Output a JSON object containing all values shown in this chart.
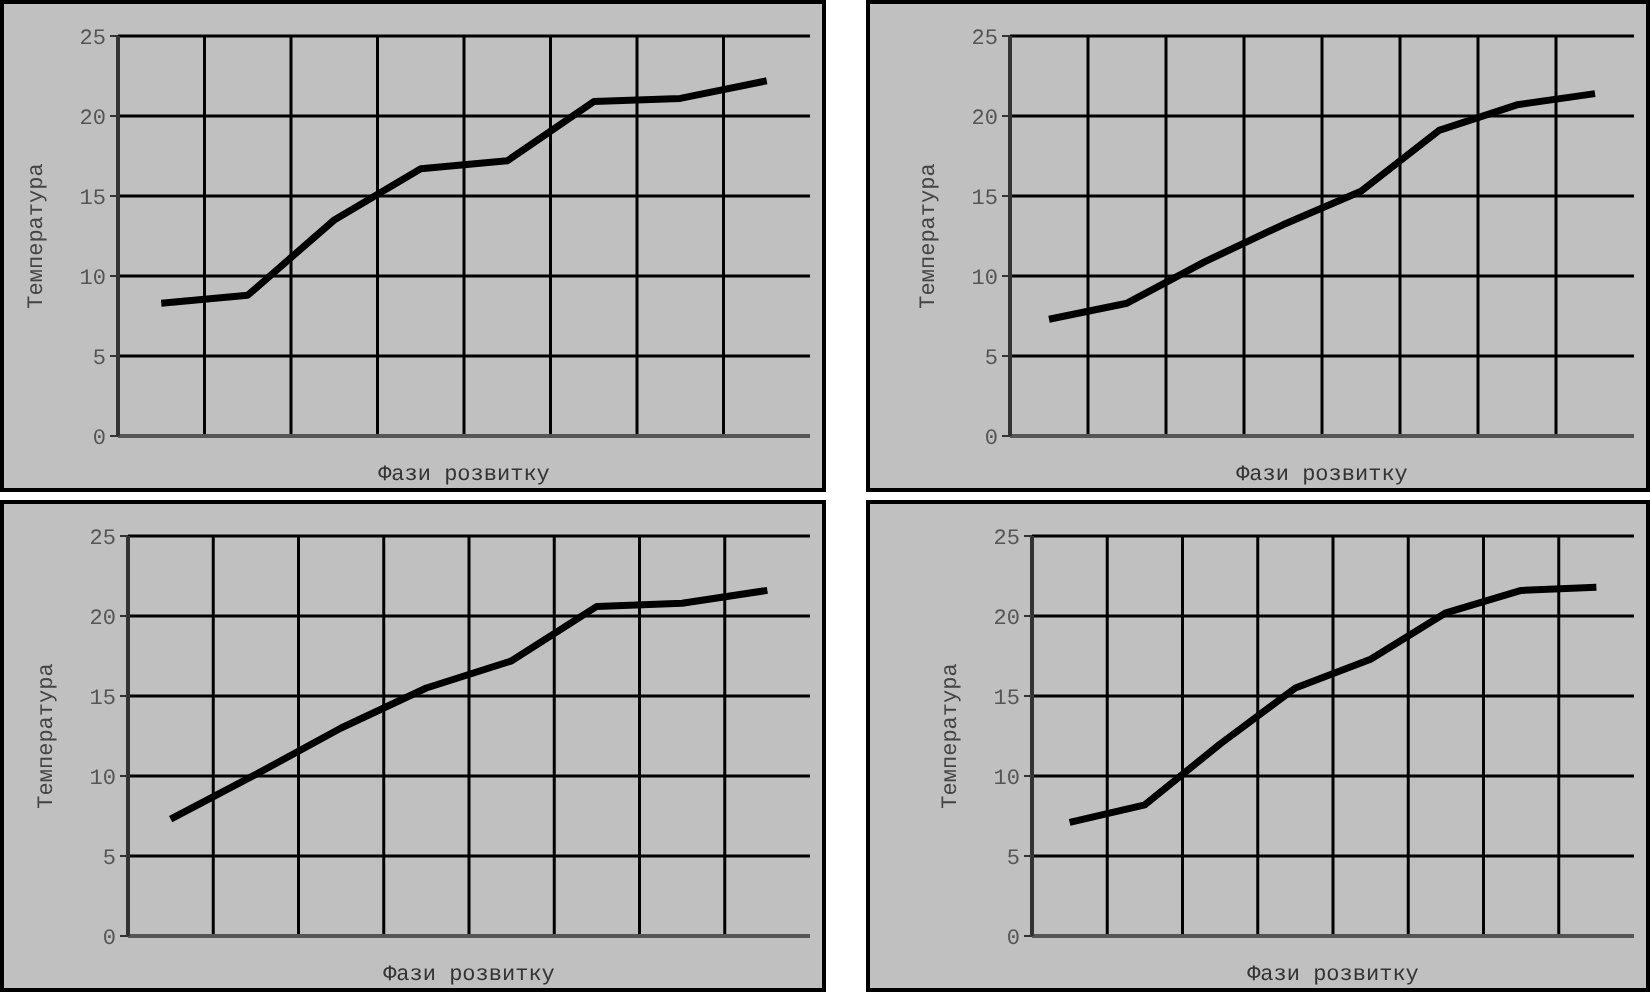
{
  "chart_data": [
    {
      "type": "line",
      "xlabel": "Фази розвитку",
      "ylabel": "Температура",
      "categories": [
        null,
        null,
        null,
        null,
        null,
        null,
        null,
        null
      ],
      "series": [
        {
          "color": "#000000",
          "values": [
            8.3,
            8.8,
            13.5,
            16.7,
            17.2,
            20.9,
            21.1,
            22.2
          ]
        }
      ],
      "ylim": [
        0,
        25
      ],
      "yticks": [
        0,
        5,
        10,
        15,
        20,
        25
      ],
      "grid": true,
      "tick_labels": "y"
    },
    {
      "type": "line",
      "xlabel": "Фази розвитку",
      "ylabel": "Температура",
      "categories": [
        null,
        null,
        null,
        null,
        null,
        null,
        null,
        null
      ],
      "series": [
        {
          "color": "#000000",
          "values": [
            7.3,
            8.3,
            10.9,
            13.2,
            15.3,
            19.1,
            20.7,
            21.4
          ]
        }
      ],
      "ylim": [
        0,
        25
      ],
      "yticks": [
        0,
        5,
        10,
        15,
        20,
        25
      ],
      "grid": true,
      "tick_labels": "y"
    },
    {
      "type": "line",
      "xlabel": "Фази розвитку",
      "ylabel": "Температура",
      "categories": [
        null,
        null,
        null,
        null,
        null,
        null,
        null,
        null
      ],
      "series": [
        {
          "color": "#000000",
          "values": [
            7.3,
            10.1,
            13.0,
            15.5,
            17.2,
            20.6,
            20.8,
            21.6
          ]
        }
      ],
      "ylim": [
        0,
        25
      ],
      "yticks": [
        0,
        5,
        10,
        15,
        20,
        25
      ],
      "grid": true,
      "tick_labels": "y"
    },
    {
      "type": "line",
      "xlabel": "Фази розвитку",
      "ylabel": "Температура",
      "categories": [
        null,
        null,
        null,
        null,
        null,
        null,
        null,
        null
      ],
      "series": [
        {
          "color": "#000000",
          "values": [
            7.1,
            8.2,
            12.0,
            15.5,
            17.3,
            20.2,
            21.6,
            21.8
          ]
        }
      ],
      "ylim": [
        0,
        25
      ],
      "yticks": [
        0,
        5,
        10,
        15,
        20,
        25
      ],
      "grid": true,
      "tick_labels": "y"
    }
  ]
}
